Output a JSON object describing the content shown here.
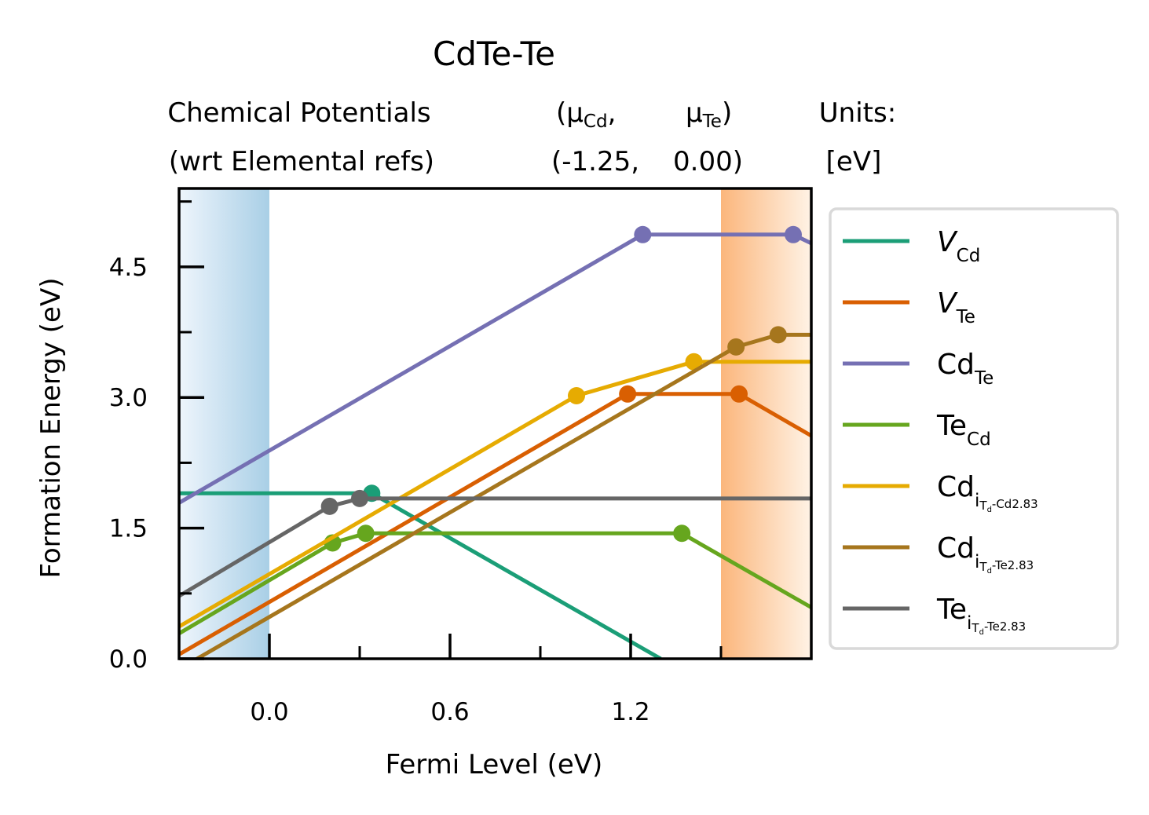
{
  "chart_data": {
    "type": "line",
    "title": "CdTe-Te",
    "header": {
      "col1": [
        "Chemical Potentials",
        "(wrt Elemental refs)"
      ],
      "col2a": [
        "(μ",
        "Cd",
        ",",
        "(-1.25,"
      ],
      "col2b": [
        "μ",
        "Te",
        ")",
        "0.00)"
      ],
      "col3": [
        "Units:",
        "[eV]"
      ]
    },
    "xlabel": "Fermi Level (eV)",
    "ylabel": "Formation Energy (eV)",
    "xlim": [
      -0.3,
      1.8
    ],
    "ylim": [
      0.0,
      5.4
    ],
    "xticks": [
      0.0,
      0.6,
      1.2
    ],
    "xtick_labels": [
      "0.0",
      "0.6",
      "1.2"
    ],
    "yticks": [
      0.0,
      1.5,
      3.0,
      4.5
    ],
    "ytick_labels": [
      "0.0",
      "1.5",
      "3.0",
      "4.5"
    ],
    "band_edges": {
      "vbm": 0.0,
      "cbm": 1.5
    },
    "series": [
      {
        "name": "V",
        "sub": "Cd",
        "italic": true,
        "color": "#1b9e77",
        "points": [
          [
            -0.3,
            1.9
          ],
          [
            0.34,
            1.9
          ],
          [
            1.3,
            0.0
          ]
        ],
        "markers": [
          [
            0.34,
            1.9
          ]
        ]
      },
      {
        "name": "V",
        "sub": "Te",
        "italic": true,
        "color": "#d95f02",
        "points": [
          [
            -0.3,
            0.05
          ],
          [
            1.19,
            3.04
          ],
          [
            1.56,
            3.04
          ],
          [
            1.8,
            2.56
          ]
        ],
        "markers": [
          [
            1.19,
            3.04
          ],
          [
            1.56,
            3.04
          ]
        ]
      },
      {
        "name": "Cd",
        "sub": "Te",
        "italic": false,
        "color": "#7570b3",
        "points": [
          [
            -0.3,
            1.79
          ],
          [
            1.24,
            4.87
          ],
          [
            1.74,
            4.87
          ],
          [
            1.8,
            4.77
          ]
        ],
        "markers": [
          [
            1.24,
            4.87
          ],
          [
            1.74,
            4.87
          ]
        ]
      },
      {
        "name": "Te",
        "sub": "Cd",
        "italic": false,
        "color": "#66a61e",
        "points": [
          [
            -0.3,
            0.29
          ],
          [
            0.21,
            1.33
          ],
          [
            0.32,
            1.44
          ],
          [
            1.37,
            1.44
          ],
          [
            1.8,
            0.59
          ]
        ],
        "markers": [
          [
            0.21,
            1.33
          ],
          [
            0.32,
            1.44
          ],
          [
            1.37,
            1.44
          ]
        ]
      },
      {
        "name": "Cd",
        "sub": "i",
        "subsub": "T",
        "subsubsub": "d",
        "tail": "-Cd2.83",
        "italic": false,
        "color": "#e6ab02",
        "points": [
          [
            -0.3,
            0.37
          ],
          [
            1.02,
            3.02
          ],
          [
            1.41,
            3.41
          ],
          [
            1.8,
            3.41
          ]
        ],
        "markers": [
          [
            1.02,
            3.02
          ],
          [
            1.41,
            3.41
          ]
        ]
      },
      {
        "name": "Cd",
        "sub": "i",
        "subsub": "T",
        "subsubsub": "d",
        "tail": "-Te2.83",
        "italic": false,
        "color": "#a6761d",
        "points": [
          [
            -0.3,
            -0.12
          ],
          [
            1.55,
            3.58
          ],
          [
            1.69,
            3.72
          ],
          [
            1.8,
            3.72
          ]
        ],
        "markers": [
          [
            1.55,
            3.58
          ],
          [
            1.69,
            3.72
          ]
        ]
      },
      {
        "name": "Te",
        "sub": "i",
        "subsub": "T",
        "subsubsub": "d",
        "tail": "-Te2.83",
        "italic": false,
        "color": "#666666",
        "points": [
          [
            -0.3,
            0.72
          ],
          [
            0.2,
            1.75
          ],
          [
            0.3,
            1.84
          ],
          [
            1.8,
            1.84
          ]
        ],
        "markers": [
          [
            0.2,
            1.75
          ],
          [
            0.3,
            1.84
          ]
        ]
      }
    ],
    "legend_placement": "right, outside plot"
  }
}
